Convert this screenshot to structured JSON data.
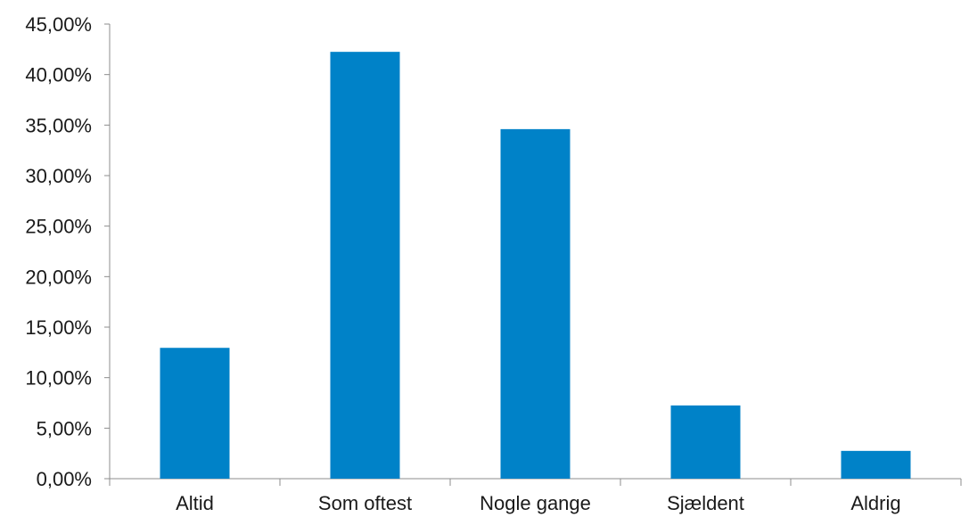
{
  "chart_data": {
    "type": "bar",
    "categories": [
      "Altid",
      "Som oftest",
      "Nogle gange",
      "Sjældent",
      "Aldrig"
    ],
    "values": [
      12.95,
      42.25,
      34.6,
      7.25,
      2.75
    ],
    "value_format": "percent_comma_2dp",
    "ylim": [
      0,
      45
    ],
    "yticks": [
      0,
      5,
      10,
      15,
      20,
      25,
      30,
      35,
      40,
      45
    ],
    "ytick_labels": [
      "0,00%",
      "5,00%",
      "10,00%",
      "15,00%",
      "20,00%",
      "25,00%",
      "30,00%",
      "35,00%",
      "40,00%",
      "45,00%"
    ],
    "title": "",
    "xlabel": "",
    "ylabel": "",
    "grid": false,
    "legend": "none",
    "bar_color": "#0082C8",
    "axis_color": "#8C8C8C"
  }
}
